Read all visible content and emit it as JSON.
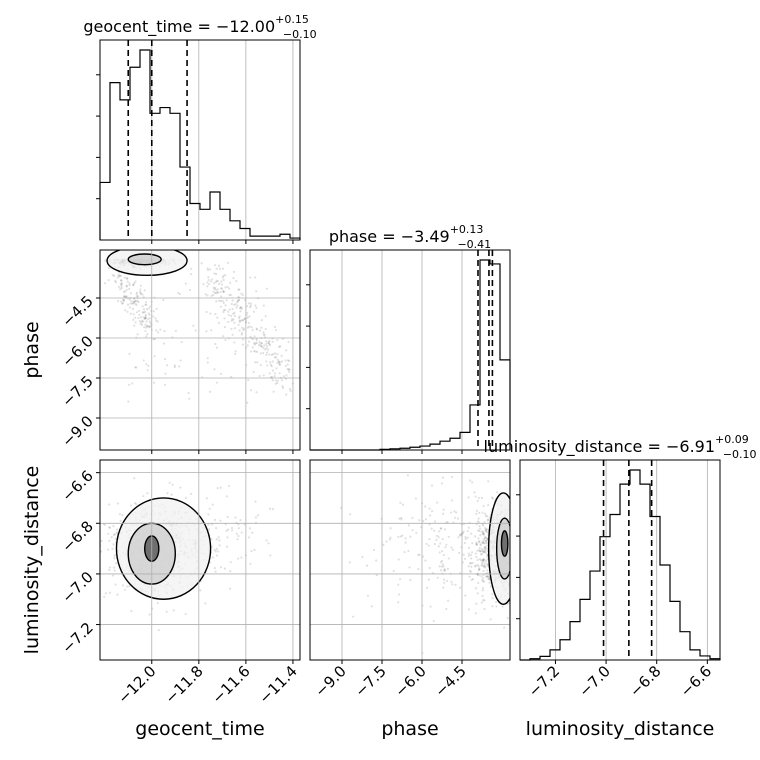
{
  "chart_data": {
    "type": "corner",
    "parameters": [
      "geocent_time",
      "phase",
      "luminosity_distance"
    ],
    "titles": {
      "geocent_time": {
        "name": "geocent_time",
        "median": "−12.00",
        "plus": "+0.15",
        "minus": "−0.10"
      },
      "phase": {
        "name": "phase",
        "median": "−3.49",
        "plus": "+0.13",
        "minus": "−0.41"
      },
      "luminosity_distance": {
        "name": "luminosity_distance",
        "median": "−6.91",
        "plus": "+0.09",
        "minus": "−0.10"
      }
    },
    "ranges": {
      "geocent_time": [
        -12.22,
        -11.37
      ],
      "phase": [
        -10.2,
        -2.7
      ],
      "luminosity_distance": [
        -7.34,
        -6.55
      ]
    },
    "ticks": {
      "geocent_time": {
        "values": [
          -12.0,
          -11.8,
          -11.6,
          -11.4
        ],
        "labels": [
          "−12.0",
          "−11.8",
          "−11.6",
          "−11.4"
        ]
      },
      "phase": {
        "values": [
          -9.0,
          -7.5,
          -6.0,
          -4.5
        ],
        "labels": [
          "−9.0",
          "−7.5",
          "−6.0",
          "−4.5"
        ]
      },
      "luminosity_distance": {
        "values": [
          -7.2,
          -7.0,
          -6.8,
          -6.6
        ],
        "labels": [
          "−7.2",
          "−7.0",
          "−6.8",
          "−6.6"
        ]
      }
    },
    "histograms": {
      "geocent_time": {
        "edges": [
          -12.22,
          -12.1775,
          -12.135,
          -12.0925,
          -12.05,
          -12.0075,
          -11.965,
          -11.9225,
          -11.88,
          -11.8375,
          -11.795,
          -11.7525,
          -11.71,
          -11.6675,
          -11.625,
          -11.5825,
          -11.54,
          -11.4975,
          -11.455,
          -11.4125,
          -11.37
        ],
        "counts": [
          0.3,
          0.82,
          0.73,
          0.9,
          0.99,
          0.66,
          0.69,
          0.66,
          0.38,
          0.19,
          0.16,
          0.25,
          0.16,
          0.1,
          0.06,
          0.02,
          0.02,
          0.02,
          0.03,
          0.01
        ],
        "quantiles": [
          -12.1,
          -12.0,
          -11.85
        ]
      },
      "phase": {
        "edges": [
          -10.2,
          -9.825,
          -9.45,
          -9.075,
          -8.7,
          -8.325,
          -7.95,
          -7.575,
          -7.2,
          -6.825,
          -6.45,
          -6.075,
          -5.7,
          -5.325,
          -4.95,
          -4.575,
          -4.2,
          -3.825,
          -3.45,
          -3.075,
          -2.7
        ],
        "counts": [
          0,
          0,
          0,
          0,
          0,
          0,
          0,
          0.003,
          0.006,
          0.009,
          0.014,
          0.02,
          0.03,
          0.045,
          0.06,
          0.09,
          0.23,
          0.97,
          0.95,
          0.46
        ],
        "quantiles": [
          -3.9,
          -3.49,
          -3.36
        ]
      },
      "luminosity_distance": {
        "edges": [
          -7.34,
          -7.3005,
          -7.261,
          -7.2215,
          -7.182,
          -7.1425,
          -7.103,
          -7.0635,
          -7.024,
          -6.9845,
          -6.945,
          -6.9055,
          -6.866,
          -6.8265,
          -6.787,
          -6.7475,
          -6.708,
          -6.6685,
          -6.629,
          -6.5895,
          -6.55
        ],
        "counts": [
          0,
          0.006,
          0.018,
          0.05,
          0.1,
          0.19,
          0.3,
          0.44,
          0.61,
          0.72,
          0.87,
          0.94,
          0.87,
          0.71,
          0.47,
          0.29,
          0.14,
          0.05,
          0.02,
          0.006
        ],
        "quantiles": [
          -7.01,
          -6.91,
          -6.82
        ]
      }
    },
    "grid": true,
    "contours": "1,2,3 sigma density contours over scatter of posterior samples"
  }
}
